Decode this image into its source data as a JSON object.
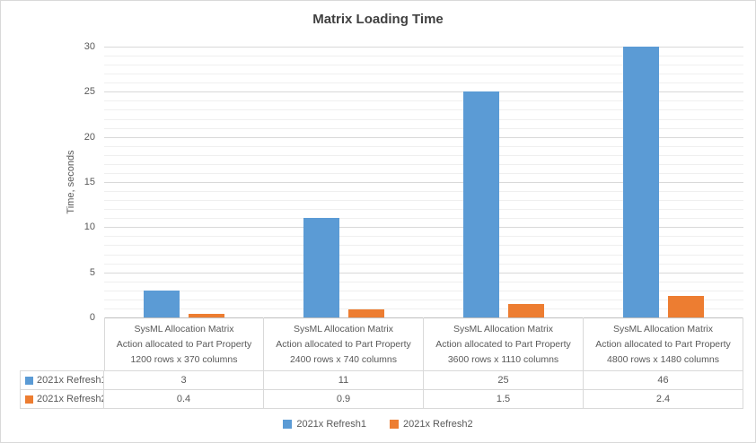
{
  "chart_data": {
    "type": "bar",
    "title": "Matrix Loading Time",
    "ylabel": "Time, seconds",
    "xlabel": "",
    "ylim": [
      0,
      30
    ],
    "major_unit": 5,
    "minor_unit": 1,
    "y_ticks": [
      0,
      5,
      10,
      15,
      20,
      25,
      30
    ],
    "grid": true,
    "legend_position": "bottom",
    "data_table_shown": true,
    "categories": [
      [
        "SysML Allocation Matrix",
        "Action allocated to Part Property",
        "1200 rows x 370 columns"
      ],
      [
        "SysML Allocation Matrix",
        "Action allocated to Part Property",
        "2400 rows x 740 columns"
      ],
      [
        "SysML Allocation Matrix",
        "Action allocated to Part Property",
        "3600 rows x 1110 columns"
      ],
      [
        "SysML Allocation Matrix",
        "Action allocated to Part Property",
        "4800 rows x 1480 columns"
      ]
    ],
    "series": [
      {
        "name": "2021x Refresh1",
        "color": "#5B9BD5",
        "values": [
          3,
          11,
          25,
          46
        ]
      },
      {
        "name": "2021x Refresh2",
        "color": "#ED7D31",
        "values": [
          0.4,
          0.9,
          1.5,
          2.4
        ]
      }
    ]
  },
  "colors": {
    "background": "#FFFFFF",
    "title_text": "#404040",
    "axis_text": "#595959",
    "major_gridline": "#D9D9D9",
    "minor_gridline": "#EFEFEF",
    "axis_line": "#BFBFBF",
    "table_border": "#D9D9D9",
    "series_blue": "#5B9BD5",
    "series_orange": "#ED7D31"
  }
}
